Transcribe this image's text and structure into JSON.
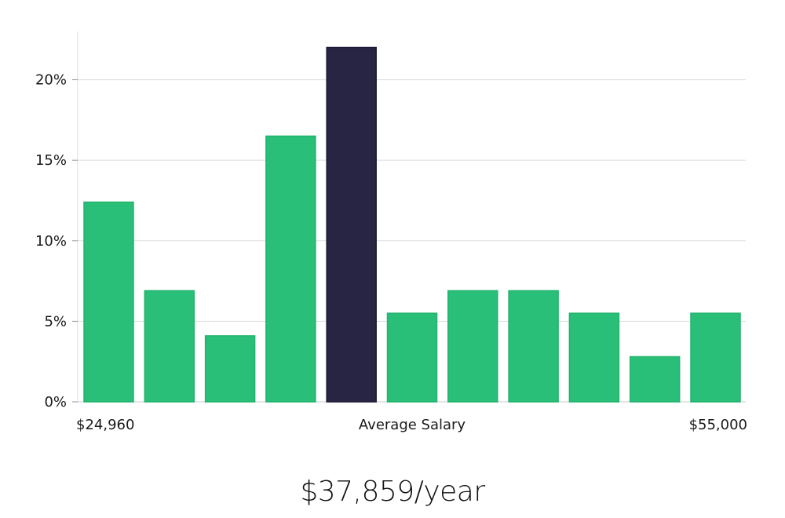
{
  "chart_data": {
    "type": "bar",
    "title": "",
    "xlabel": "Average Salary",
    "ylabel": "",
    "x_range_labels": {
      "min": "$24,960",
      "max": "$55,000"
    },
    "values": [
      12.4,
      6.9,
      4.1,
      16.5,
      22.0,
      5.5,
      6.9,
      6.9,
      5.5,
      2.8,
      5.5
    ],
    "highlight_index": 4,
    "ylim": [
      0,
      23
    ],
    "yticks": [
      0,
      5,
      10,
      15,
      20
    ],
    "ytick_labels": [
      "0%",
      "5%",
      "10%",
      "15%",
      "20%"
    ],
    "grid": true,
    "colors": {
      "bar": "#2abf78",
      "bar_border": "#22b36d",
      "highlight": "#272444",
      "grid": "#dddddd",
      "axis": "#cccccc"
    }
  },
  "summary": {
    "average_salary": "$37,859/year"
  }
}
